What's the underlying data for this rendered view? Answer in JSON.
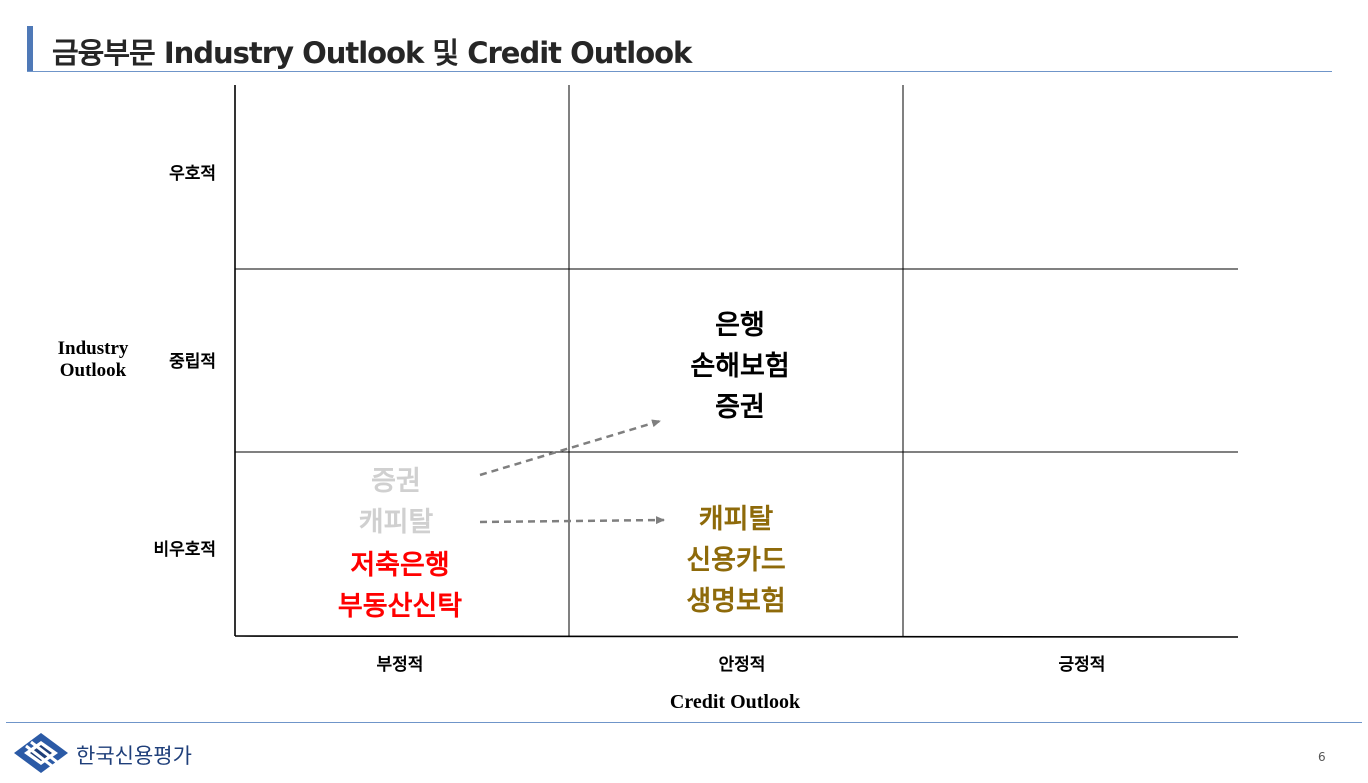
{
  "title": "금융부문 Industry Outlook 및 Credit Outlook",
  "y_axis": {
    "label_line1": "Industry",
    "label_line2": "Outlook",
    "ticks": [
      "우호적",
      "중립적",
      "비우호적"
    ]
  },
  "x_axis": {
    "label": "Credit Outlook",
    "ticks": [
      "부정적",
      "안정적",
      "긍정적"
    ]
  },
  "cells": {
    "neutral_stable": [
      "은행",
      "손해보험",
      "증권"
    ],
    "unfav_negative_previous": [
      "증권",
      "캐피탈"
    ],
    "unfav_negative_current": [
      "저축은행",
      "부동산신탁"
    ],
    "unfav_stable": [
      "캐피탈",
      "신용카드",
      "생명보험"
    ]
  },
  "colors": {
    "accent": "#4f79b7",
    "black_group": "#000000",
    "faded_group": "#d0d0d0",
    "red_group": "#ff0000",
    "gold_group": "#8e6a0a",
    "arrow": "#7f7f7f"
  },
  "footer": {
    "company": "한국신용평가",
    "page_number": "6"
  }
}
